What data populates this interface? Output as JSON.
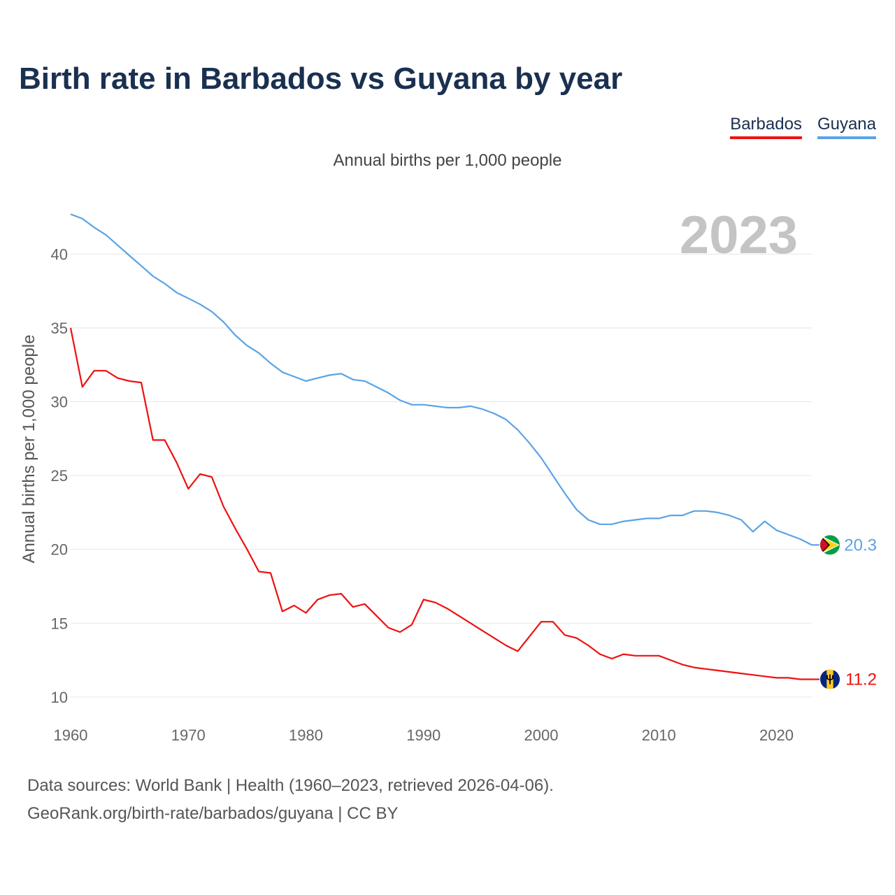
{
  "page": {
    "title": "Birth rate in Barbados vs Guyana by year",
    "subtitle": "Annual births per 1,000 people",
    "source_line1": "Data sources: World Bank | Health (1960–2023, retrieved 2026-04-06).",
    "source_line2": "GeoRank.org/birth-rate/barbados/guyana | CC BY"
  },
  "legend": [
    {
      "label": "Barbados",
      "color": "#ee1111"
    },
    {
      "label": "Guyana",
      "color": "#5ba3e6"
    }
  ],
  "chart_data": {
    "type": "line",
    "title": "Birth rate in Barbados vs Guyana by year",
    "subtitle": "Annual births per 1,000 people",
    "xlabel": "",
    "ylabel": "Annual births per 1,000 people",
    "xlim": [
      1960,
      2023
    ],
    "ylim": [
      9,
      43
    ],
    "x_ticks": [
      1960,
      1970,
      1980,
      1990,
      2000,
      2010,
      2020
    ],
    "y_ticks": [
      10,
      15,
      20,
      25,
      30,
      35,
      40
    ],
    "grid": true,
    "legend_position": "top-right",
    "year_label": "2023",
    "x": [
      1960,
      1961,
      1962,
      1963,
      1964,
      1965,
      1966,
      1967,
      1968,
      1969,
      1970,
      1971,
      1972,
      1973,
      1974,
      1975,
      1976,
      1977,
      1978,
      1979,
      1980,
      1981,
      1982,
      1983,
      1984,
      1985,
      1986,
      1987,
      1988,
      1989,
      1990,
      1991,
      1992,
      1993,
      1994,
      1995,
      1996,
      1997,
      1998,
      1999,
      2000,
      2001,
      2002,
      2003,
      2004,
      2005,
      2006,
      2007,
      2008,
      2009,
      2010,
      2011,
      2012,
      2013,
      2014,
      2015,
      2016,
      2017,
      2018,
      2019,
      2020,
      2021,
      2022,
      2023
    ],
    "series": [
      {
        "name": "Barbados",
        "color": "#ee1111",
        "end_label": "11.2",
        "flag": "barbados-flag-icon",
        "values": [
          35.0,
          31.0,
          32.1,
          32.1,
          31.6,
          31.4,
          31.3,
          27.4,
          27.4,
          25.9,
          24.1,
          25.1,
          24.9,
          22.9,
          21.4,
          20.0,
          18.5,
          18.4,
          15.8,
          16.2,
          15.7,
          16.6,
          16.9,
          17.0,
          16.1,
          16.3,
          15.5,
          14.7,
          14.4,
          14.9,
          16.6,
          16.4,
          16.0,
          15.5,
          15.0,
          14.5,
          14.0,
          13.5,
          13.1,
          14.1,
          15.1,
          15.1,
          14.2,
          14.0,
          13.5,
          12.9,
          12.6,
          12.9,
          12.8,
          12.8,
          12.8,
          12.5,
          12.2,
          12.0,
          11.9,
          11.8,
          11.7,
          11.6,
          11.5,
          11.4,
          11.3,
          11.3,
          11.2,
          11.2
        ]
      },
      {
        "name": "Guyana",
        "color": "#5ba3e6",
        "end_label": "20.3",
        "flag": "guyana-flag-icon",
        "values": [
          42.7,
          42.4,
          41.8,
          41.3,
          40.6,
          39.9,
          39.2,
          38.5,
          38.0,
          37.4,
          37.0,
          36.6,
          36.1,
          35.4,
          34.5,
          33.8,
          33.3,
          32.6,
          32.0,
          31.7,
          31.4,
          31.6,
          31.8,
          31.9,
          31.5,
          31.4,
          31.0,
          30.6,
          30.1,
          29.8,
          29.8,
          29.7,
          29.6,
          29.6,
          29.7,
          29.5,
          29.2,
          28.8,
          28.1,
          27.2,
          26.2,
          25.0,
          23.8,
          22.7,
          22.0,
          21.7,
          21.7,
          21.9,
          22.0,
          22.1,
          22.1,
          22.3,
          22.3,
          22.6,
          22.6,
          22.5,
          22.3,
          22.0,
          21.2,
          21.9,
          21.3,
          21.0,
          20.7,
          20.3
        ]
      }
    ]
  }
}
